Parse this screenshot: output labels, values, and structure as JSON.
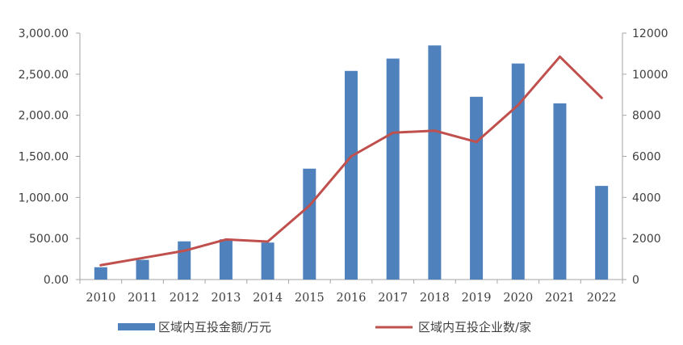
{
  "chart_data": {
    "type": "bar",
    "categories": [
      "2010",
      "2011",
      "2012",
      "2013",
      "2014",
      "2015",
      "2016",
      "2017",
      "2018",
      "2019",
      "2020",
      "2021",
      "2022"
    ],
    "series": [
      {
        "name": "区域内互投金额/万元",
        "type": "bar",
        "axis": "left",
        "color": "#4f81bd",
        "values": [
          150,
          240,
          465,
          490,
          450,
          1350,
          2540,
          2690,
          2850,
          2225,
          2630,
          2145,
          1140
        ]
      },
      {
        "name": "区域内互投企业数/家",
        "type": "line",
        "axis": "right",
        "color": "#c0504d",
        "values": [
          700,
          1050,
          1400,
          1950,
          1850,
          3600,
          6000,
          7150,
          7250,
          6700,
          8500,
          10850,
          8850
        ]
      }
    ],
    "y_left": {
      "ylim": [
        0,
        3000
      ],
      "ticks": [
        0,
        500,
        1000,
        1500,
        2000,
        2500,
        3000
      ],
      "tick_labels": [
        "0.00",
        "500.00",
        "1,000.00",
        "1,500.00",
        "2,000.00",
        "2,500.00",
        "3,000.00"
      ]
    },
    "y_right": {
      "ylim": [
        0,
        12000
      ],
      "ticks": [
        0,
        2000,
        4000,
        6000,
        8000,
        10000,
        12000
      ],
      "tick_labels": [
        "0",
        "2000",
        "4000",
        "6000",
        "8000",
        "10000",
        "12000"
      ]
    },
    "title": "",
    "xlabel": "",
    "ylabel": "",
    "grid": false,
    "legend": "bottom"
  }
}
